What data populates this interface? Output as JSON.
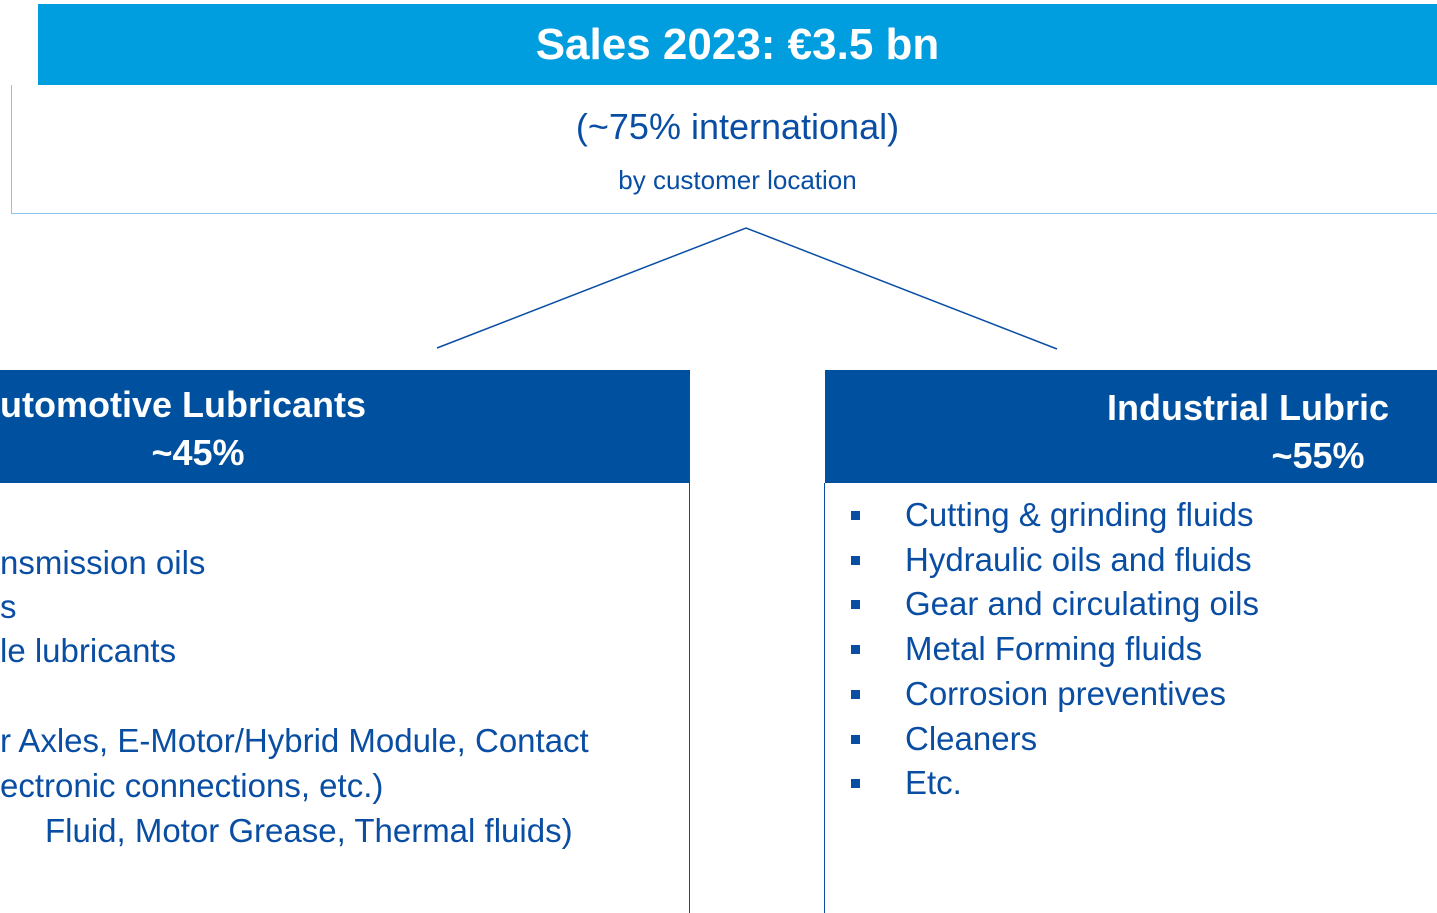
{
  "header": {
    "title": "Sales 2023: €3.5 bn",
    "subtitle": "(~75% international)",
    "note": "by customer location"
  },
  "segments": [
    {
      "title": "utomotive Lubricants",
      "share": "~45%",
      "items": [
        "nsmission oils",
        "s",
        "le lubricants",
        "r Axles, E-Motor/Hybrid Module, Contact",
        "ectronic connections, etc.)",
        "Fluid, Motor Grease, Thermal fluids)"
      ]
    },
    {
      "title": "Industrial Lubric",
      "share": "~55%",
      "items": [
        "Cutting & grinding fluids",
        "Hydraulic oils and fluids",
        "Gear and circulating oils",
        "Metal Forming fluids",
        "Corrosion preventives",
        "Cleaners",
        "Etc."
      ]
    }
  ]
}
